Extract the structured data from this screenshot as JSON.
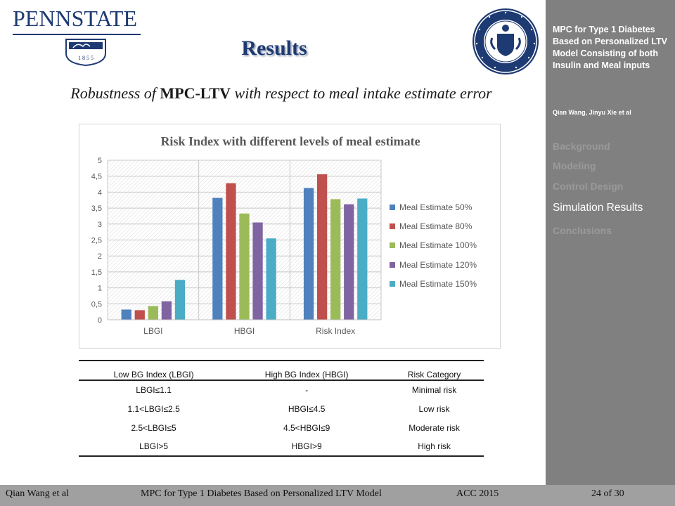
{
  "header": {
    "logo_text": "PENNSTATE",
    "logo_year": "1 8 5 5",
    "title": "Results",
    "subtitle_pre": "Robustness of ",
    "subtitle_bold": "MPC-LTV",
    "subtitle_post": " with respect to meal intake estimate error"
  },
  "chart_data": {
    "type": "bar",
    "title": "Risk Index with different levels of meal estimate",
    "categories": [
      "LBGI",
      "HBGI",
      "Risk Index"
    ],
    "yticks": [
      "0",
      "0,5",
      "1",
      "1,5",
      "2",
      "2,5",
      "3",
      "3,5",
      "4",
      "4,5",
      "5"
    ],
    "ylim": [
      0,
      5
    ],
    "legend_position": "right",
    "series": [
      {
        "name": "Meal Estimate 50%",
        "color": "#4f81bd",
        "values": [
          0.32,
          3.82,
          4.13
        ]
      },
      {
        "name": "Meal Estimate 80%",
        "color": "#c0504d",
        "values": [
          0.3,
          4.28,
          4.56
        ]
      },
      {
        "name": "Meal Estimate 100%",
        "color": "#9bbb59",
        "values": [
          0.43,
          3.33,
          3.78
        ]
      },
      {
        "name": "Meal Estimate 120%",
        "color": "#8064a2",
        "values": [
          0.58,
          3.05,
          3.62
        ]
      },
      {
        "name": "Meal Estimate 150%",
        "color": "#4bacc6",
        "values": [
          1.25,
          2.55,
          3.8
        ]
      }
    ]
  },
  "risk_table": {
    "headers": [
      "Low BG Index (LBGI)",
      "High BG Index (HBGI)",
      "Risk Category"
    ],
    "rows": [
      [
        "LBGI≤1.1",
        "-",
        "Minimal risk"
      ],
      [
        "1.1<LBGI≤2.5",
        "HBGI≤4.5",
        "Low risk"
      ],
      [
        "2.5<LBGI≤5",
        "4.5<HBGI≤9",
        "Moderate risk"
      ],
      [
        "LBGI>5",
        "HBGI>9",
        "High risk"
      ]
    ]
  },
  "sidebar": {
    "title": "MPC for Type 1 Diabetes Based on Personalized LTV Model Consisting of both Insulin and Meal inputs",
    "authors": "Qian Wang, Jinyu Xie et al",
    "nav": [
      "Background",
      "Modeling",
      "Control Design",
      "Simulation Results",
      "Conclusions"
    ],
    "active_index": 3
  },
  "footer": {
    "authors": "Qian Wang et al",
    "title": "MPC for Type 1 Diabetes Based on Personalized LTV Model",
    "conference": "ACC 2015",
    "page": "24 of 30"
  },
  "colors": {
    "psu_blue": "#1e3a72",
    "sidebar_bg": "#808080",
    "footer_bg": "#a0a0a0"
  }
}
